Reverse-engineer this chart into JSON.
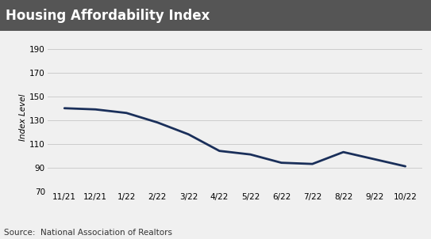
{
  "title": "Housing Affordability Index",
  "ylabel": "Index Level",
  "source_text": "Source:  National Association of Realtors",
  "x_labels": [
    "11/21",
    "12/21",
    "1/22",
    "2/22",
    "3/22",
    "4/22",
    "5/22",
    "6/22",
    "7/22",
    "8/22",
    "9/22",
    "10/22"
  ],
  "y_values": [
    140,
    139,
    136,
    128,
    118,
    104,
    101,
    94,
    93,
    103,
    97,
    91
  ],
  "ylim": [
    70,
    195
  ],
  "yticks": [
    70,
    90,
    110,
    130,
    150,
    170,
    190
  ],
  "line_color": "#1a2f5a",
  "line_width": 2.0,
  "title_bg_color": "#555555",
  "title_text_color": "#ffffff",
  "bg_color": "#f0f0f0",
  "grid_color": "#cccccc",
  "source_fontsize": 7.5,
  "title_fontsize": 12,
  "ylabel_fontsize": 7.5,
  "tick_fontsize": 7.5
}
